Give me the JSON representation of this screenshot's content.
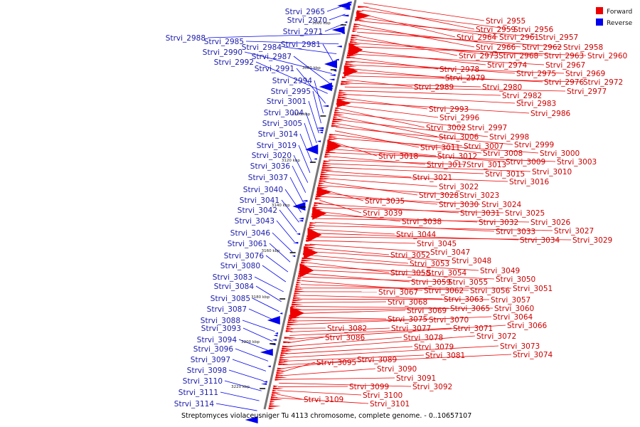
{
  "caption": "Streptomyces violaceusniger Tu 4113 chromosome, complete genome. - 0..10657107",
  "legend": [
    {
      "label": "Forward",
      "color": "#ee0000"
    },
    {
      "label": "Reverse",
      "color": "#0000ee"
    }
  ],
  "ticks": [
    "3060 kbp",
    "3080 kbp",
    "3100 kbp",
    "3120 kbp",
    "3140 kbp",
    "3160 kbp",
    "3180 kbp",
    "3200 kbp",
    "3220 kbp"
  ],
  "forward_labels": [
    "Strvi_2955",
    "Strvi_2959",
    "Strvi_2956",
    "Strvi_2964",
    "Strvi_2961",
    "Strvi_2957",
    "Strvi_2966",
    "Strvi_2962",
    "Strvi_2958",
    "Strvi_2973",
    "Strvi_2968",
    "Strvi_2963",
    "Strvi_2960",
    "Strvi_2974",
    "Strvi_2967",
    "Strvi_2978",
    "Strvi_2975",
    "Strvi_2969",
    "Strvi_2979",
    "Strvi_2976",
    "Strvi_2972",
    "Strvi_2989",
    "Strvi_2980",
    "Strvi_2977",
    "Strvi_2982",
    "Strvi_2983",
    "Strvi_2993",
    "Strvi_2986",
    "Strvi_2996",
    "Strvi_3002",
    "Strvi_2997",
    "Strvi_3006",
    "Strvi_2998",
    "Strvi_3007",
    "Strvi_2999",
    "Strvi_3011",
    "Strvi_3008",
    "Strvi_3000",
    "Strvi_3018",
    "Strvi_3012",
    "Strvi_3009",
    "Strvi_3003",
    "Strvi_3017",
    "Strvi_3013",
    "Strvi_3010",
    "Strvi_3015",
    "Strvi_3021",
    "Strvi_3016",
    "Strvi_3022",
    "Strvi_3028",
    "Strvi_3023",
    "Strvi_3035",
    "Strvi_3030",
    "Strvi_3024",
    "Strvi_3039",
    "Strvi_3031",
    "Strvi_3025",
    "Strvi_3038",
    "Strvi_3032",
    "Strvi_3026",
    "Strvi_3033",
    "Strvi_3027",
    "Strvi_3044",
    "Strvi_3034",
    "Strvi_3029",
    "Strvi_3045",
    "Strvi_3047",
    "Strvi_3052",
    "Strvi_3048",
    "Strvi_3053",
    "Strvi_3049",
    "Strvi_3058",
    "Strvi_3054",
    "Strvi_3050",
    "Strvi_3059",
    "Strvi_3055",
    "Strvi_3062",
    "Strvi_3056",
    "Strvi_3051",
    "Strvi_3067",
    "Strvi_3063",
    "Strvi_3057",
    "Strvi_3068",
    "Strvi_3065",
    "Strvi_3060",
    "Strvi_3069",
    "Strvi_3075",
    "Strvi_3070",
    "Strvi_3064",
    "Strvi_3082",
    "Strvi_3077",
    "Strvi_3071",
    "Strvi_3066",
    "Strvi_3086",
    "Strvi_3078",
    "Strvi_3072",
    "Strvi_3079",
    "Strvi_3073",
    "Strvi_3081",
    "Strvi_3074",
    "Strvi_3089",
    "Strvi_3095",
    "Strvi_3090",
    "Strvi_3091",
    "Strvi_3092",
    "Strvi_3099",
    "Strvi_3100",
    "Strvi_3109",
    "Strvi_3101"
  ],
  "reverse_labels": [
    "Strvi_2965",
    "Strvi_2970",
    "Strvi_2971",
    "Strvi_2988",
    "Strvi_2985",
    "Strvi_2984",
    "Strvi_2981",
    "Strvi_2990",
    "Strvi_2987",
    "Strvi_2992",
    "Strvi_2991",
    "Strvi_2994",
    "Strvi_2995",
    "Strvi_3001",
    "Strvi_3004",
    "Strvi_3005",
    "Strvi_3014",
    "Strvi_3019",
    "Strvi_3020",
    "Strvi_3036",
    "Strvi_3037",
    "Strvi_3040",
    "Strvi_3041",
    "Strvi_3042",
    "Strvi_3043",
    "Strvi_3046",
    "Strvi_3061",
    "Strvi_3076",
    "Strvi_3080",
    "Strvi_3083",
    "Strvi_3084",
    "Strvi_3085",
    "Strvi_3087",
    "Strvi_3088",
    "Strvi_3093",
    "Strvi_3094",
    "Strvi_3096",
    "Strvi_3097",
    "Strvi_3098",
    "Strvi_3110",
    "Strvi_3111",
    "Strvi_3114"
  ]
}
